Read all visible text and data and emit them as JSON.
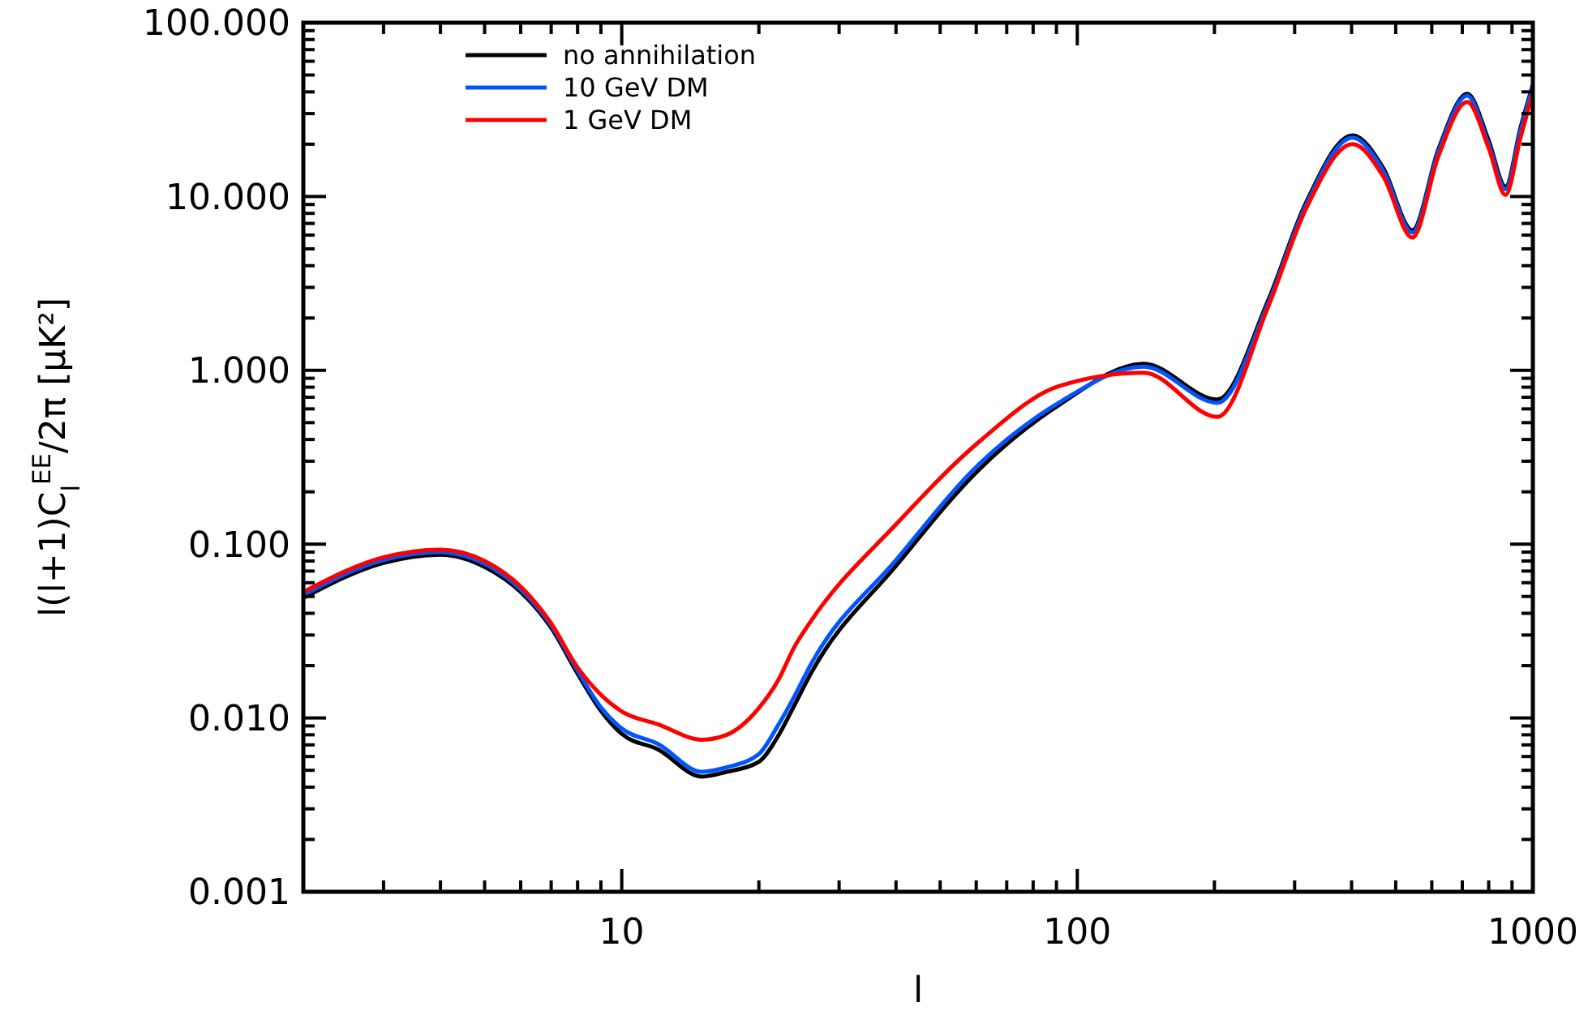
{
  "chart_data": {
    "type": "line",
    "xlabel": "l",
    "ylabel": "l(l+1)C$_{l}$$^{EE}$/2π [μK²]",
    "x": [
      2,
      3,
      4,
      5,
      6,
      7,
      8,
      9,
      10,
      12,
      15,
      17,
      20,
      22,
      24,
      26,
      40,
      61,
      91,
      140,
      203,
      262,
      317,
      402,
      470,
      544,
      620,
      718,
      800,
      871,
      940,
      1000
    ],
    "series": [
      {
        "name": "no annihilation",
        "color": "#000000",
        "values": [
          0.049,
          0.078,
          0.087,
          0.074,
          0.053,
          0.033,
          0.018,
          0.011,
          0.0081,
          0.0066,
          0.0046,
          0.0049,
          0.0056,
          0.0078,
          0.012,
          0.018,
          0.075,
          0.27,
          0.63,
          1.09,
          0.68,
          2.5,
          9.1,
          22.5,
          14.5,
          6.4,
          18.6,
          39,
          21,
          11.4,
          25,
          44
        ]
      },
      {
        "name": "10 GeV DM",
        "color": "#0055ff",
        "values": [
          0.051,
          0.081,
          0.09,
          0.077,
          0.055,
          0.034,
          0.0187,
          0.0115,
          0.0087,
          0.0071,
          0.0049,
          0.0052,
          0.0062,
          0.009,
          0.0135,
          0.0203,
          0.081,
          0.29,
          0.65,
          1.05,
          0.65,
          2.4,
          8.8,
          21.8,
          14,
          6.2,
          18,
          38,
          20,
          11,
          24,
          43
        ]
      },
      {
        "name": "1 GeV DM",
        "color": "#ff0000",
        "values": [
          0.053,
          0.084,
          0.093,
          0.08,
          0.057,
          0.035,
          0.0195,
          0.0136,
          0.0109,
          0.0092,
          0.0075,
          0.008,
          0.0114,
          0.0163,
          0.026,
          0.036,
          0.13,
          0.39,
          0.81,
          0.97,
          0.54,
          2.3,
          8.4,
          20,
          13,
          5.8,
          17,
          35,
          19,
          10.2,
          22,
          39.6
        ]
      }
    ],
    "log": "xy",
    "xlim": [
      2,
      1000
    ],
    "ylim": [
      0.001,
      100
    ],
    "xticks": [
      {
        "value": 3,
        "label": null
      },
      {
        "value": 4,
        "label": null
      },
      {
        "value": 5,
        "label": null
      },
      {
        "value": 6,
        "label": null
      },
      {
        "value": 7,
        "label": null
      },
      {
        "value": 8,
        "label": null
      },
      {
        "value": 9,
        "label": null
      },
      10,
      {
        "value": 20,
        "label": null
      },
      {
        "value": 30,
        "label": null
      },
      {
        "value": 40,
        "label": null
      },
      {
        "value": 50,
        "label": null
      },
      {
        "value": 60,
        "label": null
      },
      {
        "value": 70,
        "label": null
      },
      {
        "value": 80,
        "label": null
      },
      {
        "value": 90,
        "label": null
      },
      100,
      {
        "value": 200,
        "label": null
      },
      {
        "value": 300,
        "label": null
      },
      {
        "value": 400,
        "label": null
      },
      {
        "value": 500,
        "label": null
      },
      {
        "value": 600,
        "label": null
      },
      {
        "value": 700,
        "label": null
      },
      {
        "value": 800,
        "label": null
      },
      {
        "value": 900,
        "label": null
      },
      1000
    ],
    "yticks": [
      {
        "value": 0.001,
        "label": "0.001"
      },
      {
        "value": 0.01,
        "label": "0.010"
      },
      {
        "value": 0.1,
        "label": "0.100"
      },
      {
        "value": 1,
        "label": "1.000"
      },
      {
        "value": 10,
        "label": "10.000"
      },
      {
        "value": 100,
        "label": "100.000"
      }
    ],
    "legend": "top left",
    "grid": false,
    "line_style": "solid"
  }
}
